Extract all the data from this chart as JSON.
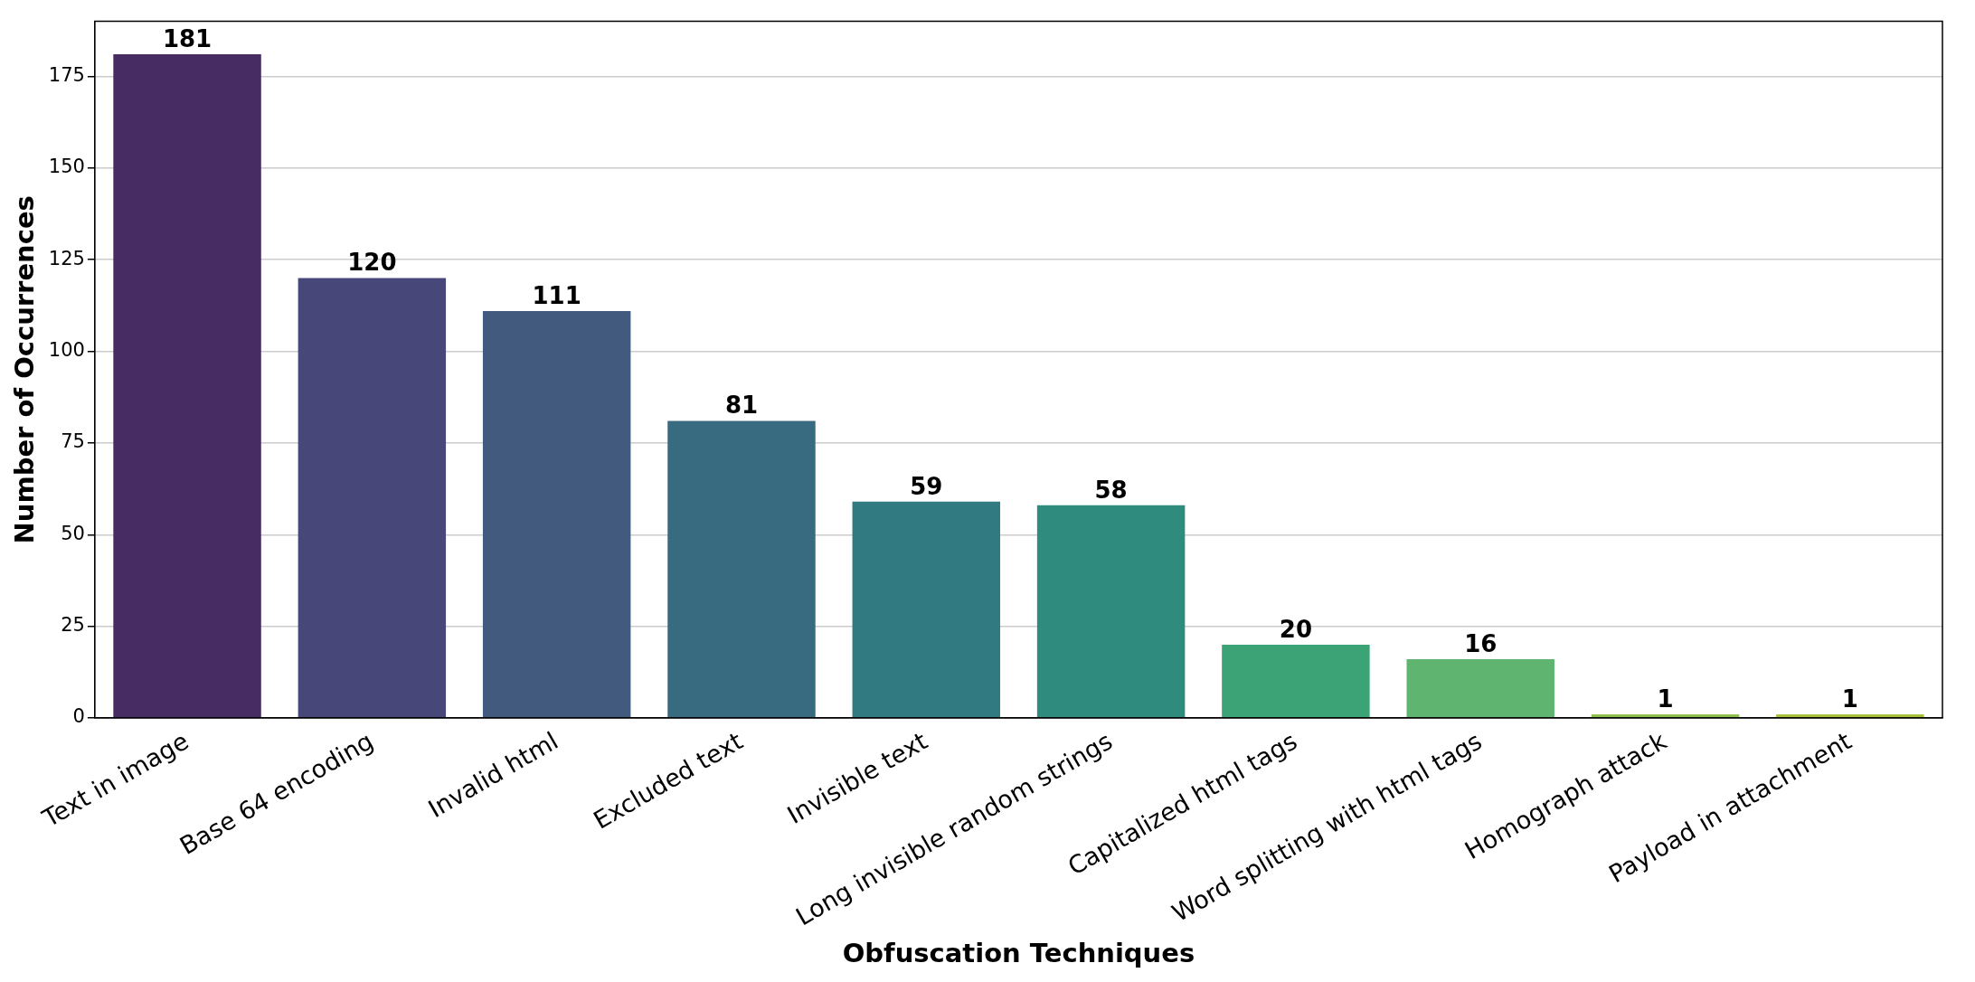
{
  "chart_data": {
    "type": "bar",
    "xlabel": "Obfuscation Techniques",
    "ylabel": "Number of Occurrences",
    "categories": [
      "Text in image",
      "Base 64 encoding",
      "Invalid html",
      "Excluded text",
      "Invisible text",
      "Long invisible random strings",
      "Capitalized html tags",
      "Word splitting with html tags",
      "Homograph attack",
      "Payload in attachment"
    ],
    "values": [
      181,
      120,
      111,
      81,
      59,
      58,
      20,
      16,
      1,
      1
    ],
    "colors": [
      "#472c64",
      "#48477a",
      "#415a7e",
      "#386b80",
      "#317a82",
      "#2e8b7e",
      "#3ca377",
      "#5fb46f",
      "#8ebf4f",
      "#a8c23c"
    ],
    "ylim": [
      0,
      190
    ],
    "yticks": [
      0,
      25,
      50,
      75,
      100,
      125,
      150,
      175
    ],
    "grid": "y",
    "data_labels": true
  }
}
